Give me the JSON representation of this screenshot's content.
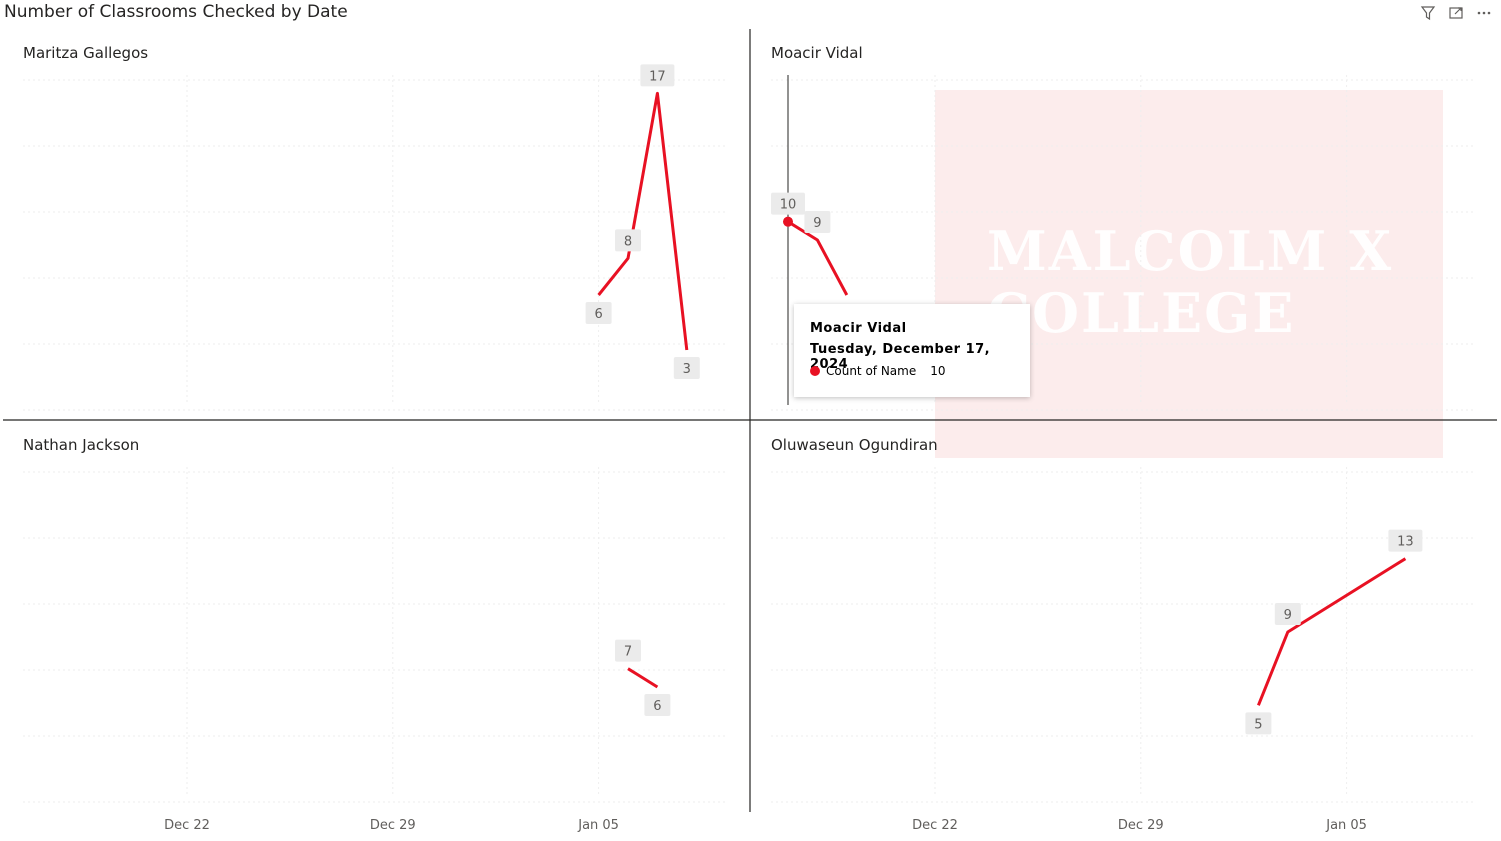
{
  "header": {
    "title": "Number of Classrooms Checked by Date",
    "icons": [
      "filter-icon",
      "focus-mode-icon",
      "more-options-icon"
    ]
  },
  "watermark": {
    "lines": [
      "MALCOLM X",
      "COLLEGE"
    ]
  },
  "tooltip": {
    "name": "Moacir Vidal",
    "date": "Tuesday, December 17, 2024",
    "measure_label": "Count of Name",
    "measure_value": "10"
  },
  "chart_data": {
    "type": "line",
    "layout": "small-multiples",
    "line_color": "#e81123",
    "x_ticks": [
      "Dec 22",
      "Dec 29",
      "Jan 05"
    ],
    "grid": true,
    "series": [
      {
        "name": "Maritza Gallegos",
        "x": [
          "2025-01-05",
          "2025-01-06",
          "2025-01-07",
          "2025-01-08"
        ],
        "values": [
          6,
          8,
          17,
          3
        ]
      },
      {
        "name": "Moacir Vidal",
        "x": [
          "2024-12-17",
          "2024-12-18",
          "2024-12-19"
        ],
        "values": [
          10,
          9,
          6
        ]
      },
      {
        "name": "Nathan Jackson",
        "x": [
          "2025-01-06",
          "2025-01-07"
        ],
        "values": [
          7,
          6
        ]
      },
      {
        "name": "Oluwaseun Ogundiran",
        "x": [
          "2025-01-02",
          "2025-01-03",
          "2025-01-07"
        ],
        "values": [
          5,
          9,
          13
        ]
      }
    ],
    "hidden_labels": [
      [
        false,
        false,
        false,
        false
      ],
      [
        false,
        false,
        true
      ],
      [
        false,
        false
      ],
      [
        false,
        false,
        false
      ]
    ]
  }
}
